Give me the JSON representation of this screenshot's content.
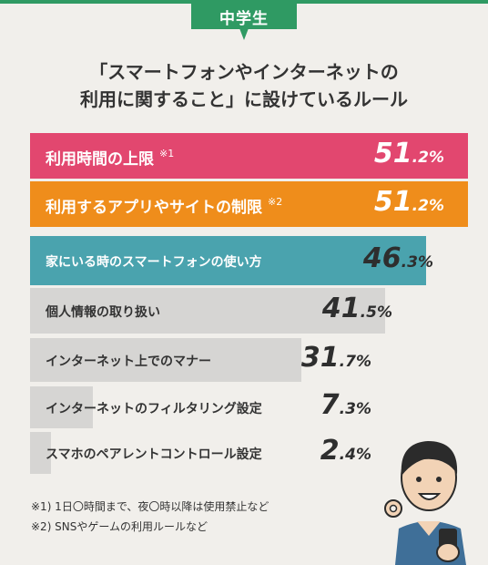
{
  "header": {
    "tab_label": "中学生"
  },
  "title_lines": [
    "「スマートフォンやインターネットの",
    "利用に関すること」に設けているルール"
  ],
  "chart_data": {
    "type": "bar",
    "orientation": "horizontal",
    "categories": [
      "利用時間の上限",
      "利用するアプリやサイトの制限",
      "家にいる時のスマートフォンの使い方",
      "個人情報の取り扱い",
      "インターネット上でのマナー",
      "インターネットのフィルタリング設定",
      "スマホのペアレントコントロール設定"
    ],
    "category_notes": [
      "※1",
      "※2",
      "",
      "",
      "",
      "",
      ""
    ],
    "values": [
      51.2,
      51.2,
      46.3,
      41.5,
      31.7,
      7.3,
      2.4
    ],
    "unit": "%",
    "bar_colors": [
      "#e2476f",
      "#ef8d1b",
      "#4aa3ae",
      "#d6d5d3",
      "#d6d5d3",
      "#d6d5d3",
      "#d6d5d3"
    ]
  },
  "footnotes": [
    "※1) 1日〇時間まで、夜〇時以降は使用禁止など",
    "※2) SNSやゲームの利用ルールなど"
  ],
  "illustration": {
    "subject": "boy-ok-gesture-holding-phone"
  }
}
